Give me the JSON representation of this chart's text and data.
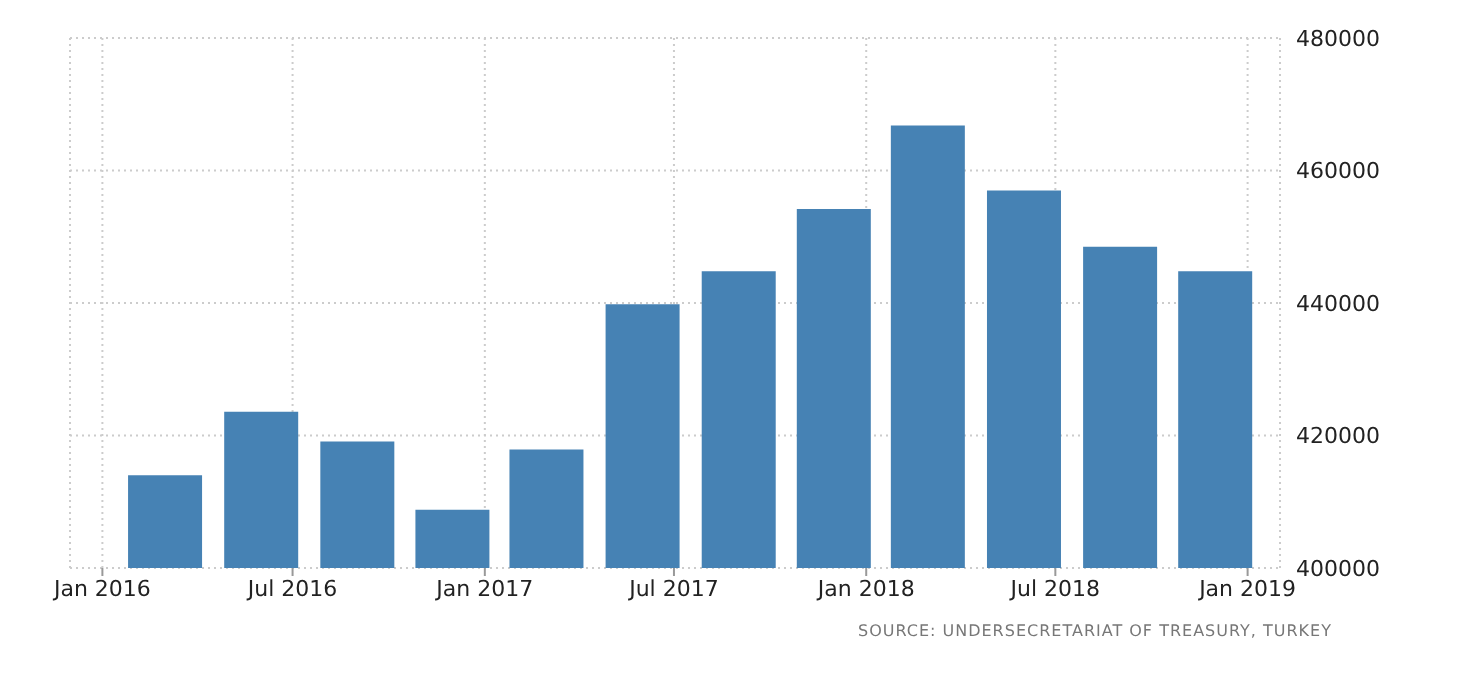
{
  "chart_data": {
    "type": "bar",
    "x": [
      "2016-03-01",
      "2016-06-01",
      "2016-09-01",
      "2016-12-01",
      "2017-03-01",
      "2017-06-01",
      "2017-09-01",
      "2017-12-01",
      "2018-03-01",
      "2018-06-01",
      "2018-09-01",
      "2018-12-01"
    ],
    "values": [
      414000,
      423600,
      419100,
      408800,
      417900,
      439800,
      444800,
      454200,
      466800,
      457000,
      448500,
      444800
    ],
    "color": "#4682b4",
    "xlim": [
      "2015-12-01",
      "2019-02-01"
    ],
    "xticks": [
      {
        "value": "2016-01-01",
        "label": "Jan 2016"
      },
      {
        "value": "2016-07-01",
        "label": "Jul 2016"
      },
      {
        "value": "2017-01-01",
        "label": "Jan 2017"
      },
      {
        "value": "2017-07-01",
        "label": "Jul 2017"
      },
      {
        "value": "2018-01-01",
        "label": "Jan 2018"
      },
      {
        "value": "2018-07-01",
        "label": "Jul 2018"
      },
      {
        "value": "2019-01-01",
        "label": "Jan 2019"
      }
    ],
    "ylim": [
      400000,
      480000
    ],
    "yticks": [
      400000,
      420000,
      440000,
      460000,
      480000
    ],
    "grid": true,
    "annotations": [
      "SOURCE: UNDERSECRETARIAT OF TREASURY, TURKEY"
    ]
  }
}
